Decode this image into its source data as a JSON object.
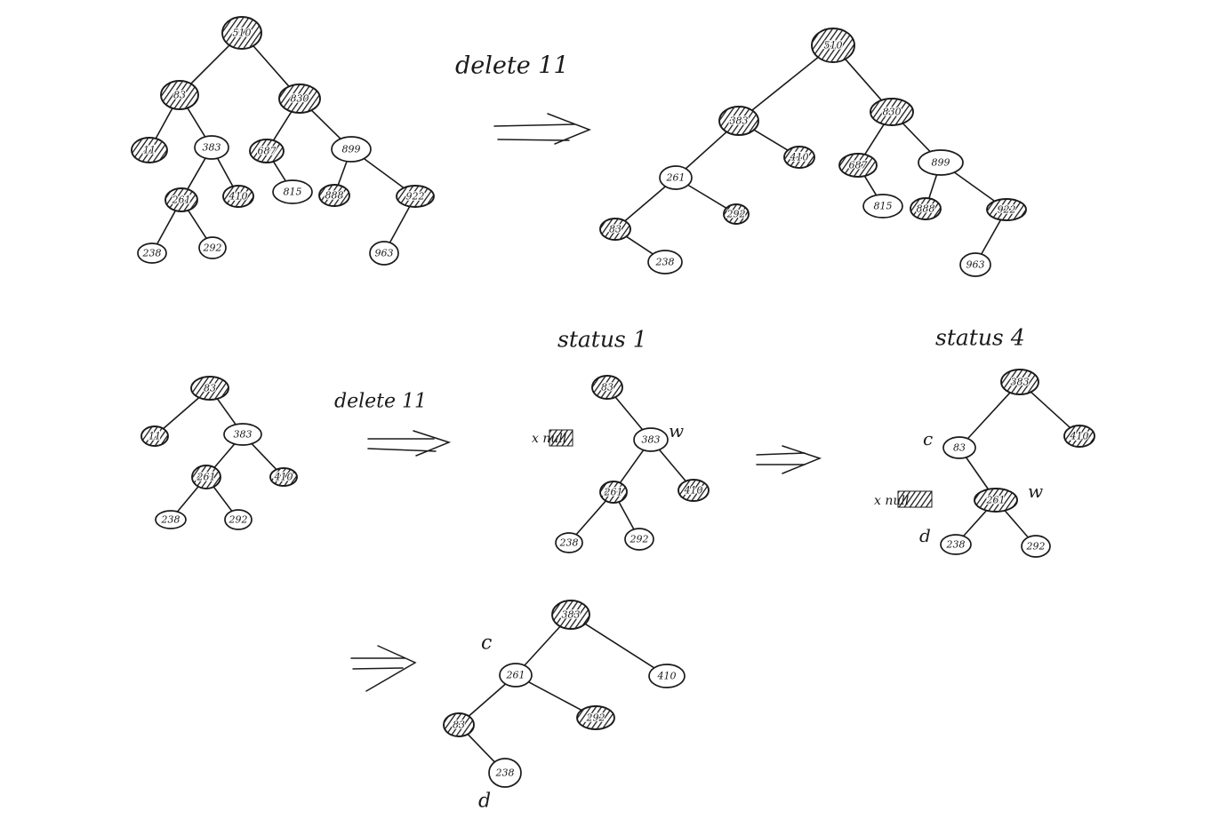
{
  "diagram": {
    "colors": {
      "ink": "#1a1a1a",
      "paper": "#ffffff"
    },
    "panels": [
      {
        "id": "p1-before",
        "nodes": [
          {
            "id": "a",
            "label": "510",
            "black": true
          },
          {
            "id": "b",
            "label": "83",
            "black": true
          },
          {
            "id": "c",
            "label": "830",
            "black": true
          },
          {
            "id": "d",
            "label": "11",
            "black": true
          },
          {
            "id": "e",
            "label": "383",
            "black": false
          },
          {
            "id": "f",
            "label": "687",
            "black": true
          },
          {
            "id": "g",
            "label": "899",
            "black": false
          },
          {
            "id": "h",
            "label": "261",
            "black": true
          },
          {
            "id": "i",
            "label": "410",
            "black": true
          },
          {
            "id": "j",
            "label": "815",
            "black": false
          },
          {
            "id": "k",
            "label": "888",
            "black": true
          },
          {
            "id": "l",
            "label": "922",
            "black": true
          },
          {
            "id": "m",
            "label": "238",
            "black": false
          },
          {
            "id": "n",
            "label": "292",
            "black": false
          },
          {
            "id": "o",
            "label": "963",
            "black": false
          }
        ],
        "edges": [
          [
            "a",
            "b"
          ],
          [
            "a",
            "c"
          ],
          [
            "b",
            "d"
          ],
          [
            "b",
            "e"
          ],
          [
            "c",
            "f"
          ],
          [
            "c",
            "g"
          ],
          [
            "e",
            "h"
          ],
          [
            "e",
            "i"
          ],
          [
            "f",
            "j"
          ],
          [
            "g",
            "k"
          ],
          [
            "g",
            "l"
          ],
          [
            "h",
            "m"
          ],
          [
            "h",
            "n"
          ],
          [
            "l",
            "o"
          ]
        ]
      },
      {
        "id": "p1-after",
        "nodes": [
          {
            "id": "a",
            "label": "510",
            "black": true
          },
          {
            "id": "b",
            "label": "383",
            "black": true
          },
          {
            "id": "c",
            "label": "830",
            "black": true
          },
          {
            "id": "d",
            "label": "261",
            "black": false
          },
          {
            "id": "e",
            "label": "410",
            "black": true
          },
          {
            "id": "f",
            "label": "687",
            "black": true
          },
          {
            "id": "g",
            "label": "899",
            "black": false
          },
          {
            "id": "h",
            "label": "83",
            "black": true
          },
          {
            "id": "i",
            "label": "292",
            "black": true
          },
          {
            "id": "j",
            "label": "815",
            "black": false
          },
          {
            "id": "k",
            "label": "888",
            "black": true
          },
          {
            "id": "l",
            "label": "922",
            "black": true
          },
          {
            "id": "m",
            "label": "238",
            "black": false
          },
          {
            "id": "n",
            "label": "963",
            "black": false
          }
        ],
        "edges": [
          [
            "a",
            "b"
          ],
          [
            "a",
            "c"
          ],
          [
            "b",
            "d"
          ],
          [
            "b",
            "e"
          ],
          [
            "c",
            "f"
          ],
          [
            "c",
            "g"
          ],
          [
            "d",
            "h"
          ],
          [
            "d",
            "i"
          ],
          [
            "f",
            "j"
          ],
          [
            "g",
            "k"
          ],
          [
            "g",
            "l"
          ],
          [
            "h",
            "m"
          ],
          [
            "l",
            "n"
          ]
        ]
      },
      {
        "id": "p2-before",
        "nodes": [
          {
            "id": "a",
            "label": "83",
            "black": true
          },
          {
            "id": "b",
            "label": "11",
            "black": true
          },
          {
            "id": "c",
            "label": "383",
            "black": false
          },
          {
            "id": "d",
            "label": "261",
            "black": true
          },
          {
            "id": "e",
            "label": "410",
            "black": true
          },
          {
            "id": "f",
            "label": "238",
            "black": false
          },
          {
            "id": "g",
            "label": "292",
            "black": false
          }
        ],
        "edges": [
          [
            "a",
            "b"
          ],
          [
            "a",
            "c"
          ],
          [
            "c",
            "d"
          ],
          [
            "c",
            "e"
          ],
          [
            "d",
            "f"
          ],
          [
            "d",
            "g"
          ]
        ]
      },
      {
        "id": "p2-status1",
        "nodes": [
          {
            "id": "a",
            "label": "83",
            "black": true
          },
          {
            "id": "c",
            "label": "383",
            "black": false
          },
          {
            "id": "d",
            "label": "261",
            "black": true
          },
          {
            "id": "e",
            "label": "410",
            "black": true
          },
          {
            "id": "f",
            "label": "238",
            "black": false
          },
          {
            "id": "g",
            "label": "292",
            "black": false
          }
        ],
        "edges": [
          [
            "a",
            "c"
          ],
          [
            "c",
            "d"
          ],
          [
            "c",
            "e"
          ],
          [
            "d",
            "f"
          ],
          [
            "d",
            "g"
          ]
        ]
      },
      {
        "id": "p2-status4",
        "nodes": [
          {
            "id": "a",
            "label": "383",
            "black": true
          },
          {
            "id": "b",
            "label": "83",
            "black": false
          },
          {
            "id": "c",
            "label": "410",
            "black": true
          },
          {
            "id": "d",
            "label": "261",
            "black": true
          },
          {
            "id": "e",
            "label": "238",
            "black": false
          },
          {
            "id": "f",
            "label": "292",
            "black": false
          }
        ],
        "edges": [
          [
            "a",
            "b"
          ],
          [
            "a",
            "c"
          ],
          [
            "b",
            "d"
          ],
          [
            "d",
            "e"
          ],
          [
            "d",
            "f"
          ]
        ]
      },
      {
        "id": "p2-final",
        "nodes": [
          {
            "id": "a",
            "label": "383",
            "black": true
          },
          {
            "id": "b",
            "label": "261",
            "black": false
          },
          {
            "id": "c",
            "label": "410",
            "black": false
          },
          {
            "id": "d",
            "label": "83",
            "black": true
          },
          {
            "id": "e",
            "label": "292",
            "black": true
          },
          {
            "id": "f",
            "label": "238",
            "black": false
          }
        ],
        "edges": [
          [
            "a",
            "b"
          ],
          [
            "a",
            "c"
          ],
          [
            "b",
            "d"
          ],
          [
            "b",
            "e"
          ],
          [
            "d",
            "f"
          ]
        ]
      }
    ],
    "texts": {
      "delete_top": "delete 11",
      "delete_mid": "delete 11",
      "status1": "status 1",
      "status4": "status 4",
      "x_null_1": "x null",
      "w_1": "w",
      "c_1": "c",
      "x_null_2": "x null",
      "w_2": "w",
      "d_1": "d",
      "c_2": "c",
      "d_2": "d"
    }
  }
}
